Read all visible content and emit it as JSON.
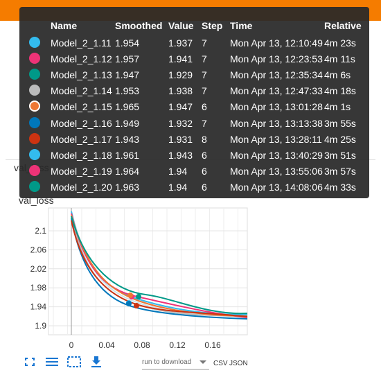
{
  "tab_label": "val_loss",
  "chart": {
    "title": "val_loss",
    "yticks": [
      "2.1",
      "2.06",
      "2.02",
      "1.98",
      "1.94",
      "1.9"
    ],
    "xticks": [
      "0",
      "0.04",
      "0.08",
      "0.12",
      "0.16"
    ],
    "run_select": "run to download",
    "csv": "CSV",
    "json": "JSON"
  },
  "table": {
    "headers": [
      "Name",
      "Smoothed",
      "Value",
      "Step",
      "Time",
      "Relative"
    ],
    "rows": [
      {
        "color": "#33bbee",
        "name": "Model_2_1.11",
        "smoothed": 1.954,
        "value": 1.937,
        "step": 7,
        "time": "Mon Apr 13, 12:10:49",
        "relative": "4m 23s"
      },
      {
        "color": "#ee3377",
        "name": "Model_2_1.12",
        "smoothed": 1.957,
        "value": 1.941,
        "step": 7,
        "time": "Mon Apr 13, 12:23:53",
        "relative": "4m 11s"
      },
      {
        "color": "#009988",
        "name": "Model_2_1.13",
        "smoothed": 1.947,
        "value": 1.929,
        "step": 7,
        "time": "Mon Apr 13, 12:35:34",
        "relative": "4m 6s"
      },
      {
        "color": "#bbbbbb",
        "name": "Model_2_1.14",
        "smoothed": 1.953,
        "value": 1.938,
        "step": 7,
        "time": "Mon Apr 13, 12:47:33",
        "relative": "4m 18s"
      },
      {
        "color": "#ee7733",
        "name": "Model_2_1.15",
        "smoothed": 1.965,
        "value": 1.947,
        "step": 6,
        "time": "Mon Apr 13, 13:01:28",
        "relative": "4m 1s"
      },
      {
        "color": "#0077bb",
        "name": "Model_2_1.16",
        "smoothed": 1.949,
        "value": 1.932,
        "step": 7,
        "time": "Mon Apr 13, 13:13:38",
        "relative": "3m 55s"
      },
      {
        "color": "#cc3311",
        "name": "Model_2_1.17",
        "smoothed": 1.943,
        "value": 1.931,
        "step": 8,
        "time": "Mon Apr 13, 13:28:11",
        "relative": "4m 25s"
      },
      {
        "color": "#33bbee",
        "name": "Model_2_1.18",
        "smoothed": 1.961,
        "value": 1.943,
        "step": 6,
        "time": "Mon Apr 13, 13:40:29",
        "relative": "3m 51s"
      },
      {
        "color": "#ee3377",
        "name": "Model_2_1.19",
        "smoothed": 1.964,
        "value": 1.94,
        "step": 6,
        "time": "Mon Apr 13, 13:55:06",
        "relative": "3m 57s"
      },
      {
        "color": "#009988",
        "name": "Model_2_1.20",
        "smoothed": 1.963,
        "value": 1.94,
        "step": 6,
        "time": "Mon Apr 13, 14:08:06",
        "relative": "4m 33s"
      }
    ]
  }
}
